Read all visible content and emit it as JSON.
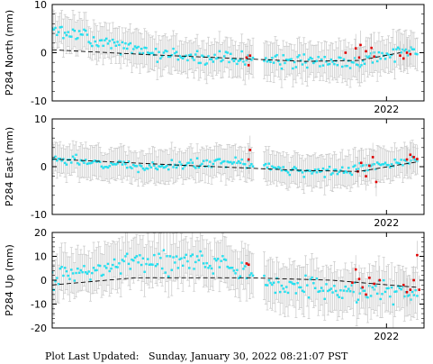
{
  "footer": {
    "label": "Plot Last Updated:",
    "value": "Sunday, January 30, 2022 08:21:07 PST"
  },
  "colors": {
    "points": "#22e0f0",
    "recent_points": "#e00000",
    "error_bars": "#c8c8c8",
    "trend": "#000000"
  },
  "chart_data": [
    {
      "type": "scatter",
      "ylabel": "P284 North (mm)",
      "ylim": [
        -10,
        10
      ],
      "yticks": [
        -10,
        0,
        10
      ],
      "x_tick_labels": [
        {
          "x": 2022.0,
          "label": "2022"
        }
      ],
      "xlim": [
        2017.1,
        2022.55
      ],
      "trend": {
        "x": [
          2017.1,
          2018.5,
          2020.8,
          2021.6,
          2022.2
        ],
        "y": [
          0.6,
          -0.4,
          -1.8,
          -1.6,
          0.0
        ]
      },
      "series": [
        {
          "role": "gps",
          "seed": 1,
          "x_range": [
            2017.1,
            2022.45
          ],
          "n": 230,
          "gap": [
            2020.05,
            2020.2
          ],
          "anchors": [
            [
              2017.1,
              4.5
            ],
            [
              2017.6,
              3.0
            ],
            [
              2018.2,
              1.0
            ],
            [
              2019.0,
              -0.8
            ],
            [
              2019.8,
              -1.5
            ],
            [
              2020.5,
              -2.0
            ],
            [
              2021.0,
              -1.8
            ],
            [
              2021.4,
              -2.5
            ],
            [
              2021.8,
              -1.0
            ],
            [
              2022.2,
              0.0
            ]
          ],
          "scatter": 1.6,
          "errbar": 3.5
        },
        {
          "role": "recent",
          "seed": 2,
          "points": [
            [
              2019.95,
              -1.0
            ],
            [
              2019.98,
              -2.6
            ],
            [
              2020.0,
              -0.6
            ],
            [
              2021.4,
              0.0
            ],
            [
              2021.55,
              0.9
            ],
            [
              2021.6,
              -1.0
            ],
            [
              2021.62,
              1.6
            ],
            [
              2021.7,
              0.3
            ],
            [
              2021.78,
              1.0
            ],
            [
              2021.82,
              -0.8
            ],
            [
              2022.2,
              -0.6
            ],
            [
              2022.25,
              -1.2
            ],
            [
              2022.3,
              0.0
            ],
            [
              2022.35,
              -0.3
            ]
          ]
        }
      ]
    },
    {
      "type": "scatter",
      "ylabel": "P284 East (mm)",
      "ylim": [
        -10,
        10
      ],
      "yticks": [
        -10,
        0,
        10
      ],
      "x_tick_labels": [
        {
          "x": 2022.0,
          "label": "2022"
        }
      ],
      "xlim": [
        2017.1,
        2022.55
      ],
      "trend": {
        "x": [
          2017.1,
          2019.0,
          2020.8,
          2021.6,
          2022.45
        ],
        "y": [
          1.6,
          0.3,
          -0.8,
          -1.0,
          1.0
        ]
      },
      "series": [
        {
          "role": "gps",
          "seed": 3,
          "x_range": [
            2017.1,
            2022.45
          ],
          "n": 230,
          "gap": [
            2020.05,
            2020.2
          ],
          "anchors": [
            [
              2017.1,
              1.5
            ],
            [
              2017.8,
              0.8
            ],
            [
              2018.5,
              0.0
            ],
            [
              2019.5,
              0.8
            ],
            [
              2020.0,
              0.5
            ],
            [
              2020.6,
              -0.6
            ],
            [
              2021.0,
              -1.2
            ],
            [
              2021.5,
              -0.5
            ],
            [
              2022.0,
              0.6
            ],
            [
              2022.4,
              1.8
            ]
          ],
          "scatter": 1.0,
          "errbar": 3.2
        },
        {
          "role": "recent",
          "seed": 4,
          "points": [
            [
              2019.98,
              1.5
            ],
            [
              2020.0,
              3.5
            ],
            [
              2021.58,
              -1.0
            ],
            [
              2021.63,
              0.8
            ],
            [
              2021.7,
              -2.0
            ],
            [
              2021.75,
              0.2
            ],
            [
              2021.8,
              2.0
            ],
            [
              2021.85,
              -3.2
            ],
            [
              2022.3,
              1.5
            ],
            [
              2022.35,
              2.5
            ],
            [
              2022.4,
              2.0
            ],
            [
              2022.45,
              1.6
            ]
          ]
        }
      ]
    },
    {
      "type": "scatter",
      "ylabel": "P284 Up (mm)",
      "ylim": [
        -20,
        20
      ],
      "yticks": [
        -20,
        -10,
        0,
        10,
        20
      ],
      "x_tick_labels": [
        {
          "x": 2022.0,
          "label": "2022"
        }
      ],
      "xlim": [
        2017.1,
        2022.55
      ],
      "trend": {
        "x": [
          2017.1,
          2018.3,
          2020.0,
          2021.2,
          2022.45
        ],
        "y": [
          -2.0,
          1.0,
          1.0,
          0.0,
          -3.0
        ]
      },
      "series": [
        {
          "role": "gps",
          "seed": 5,
          "x_range": [
            2017.1,
            2022.45
          ],
          "n": 230,
          "gap": [
            2020.05,
            2020.2
          ],
          "anchors": [
            [
              2017.1,
              0.0
            ],
            [
              2017.6,
              4.0
            ],
            [
              2018.3,
              7.0
            ],
            [
              2019.0,
              8.0
            ],
            [
              2019.6,
              7.0
            ],
            [
              2020.0,
              3.0
            ],
            [
              2020.4,
              -2.0
            ],
            [
              2020.9,
              -3.0
            ],
            [
              2021.3,
              -5.0
            ],
            [
              2021.8,
              -4.0
            ],
            [
              2022.4,
              -6.0
            ]
          ],
          "scatter": 4.5,
          "errbar": 9.0
        },
        {
          "role": "recent",
          "seed": 6,
          "points": [
            [
              2019.95,
              7.0
            ],
            [
              2019.98,
              6.5
            ],
            [
              2021.5,
              -1.0
            ],
            [
              2021.55,
              4.5
            ],
            [
              2021.6,
              0.5
            ],
            [
              2021.65,
              -3.0
            ],
            [
              2021.7,
              -6.0
            ],
            [
              2021.75,
              1.0
            ],
            [
              2021.82,
              -1.5
            ],
            [
              2021.9,
              0.0
            ],
            [
              2022.25,
              -2.0
            ],
            [
              2022.3,
              -5.0
            ],
            [
              2022.35,
              -4.0
            ],
            [
              2022.4,
              0.0
            ],
            [
              2022.45,
              10.5
            ],
            [
              2022.48,
              -4.0
            ]
          ]
        }
      ]
    }
  ]
}
